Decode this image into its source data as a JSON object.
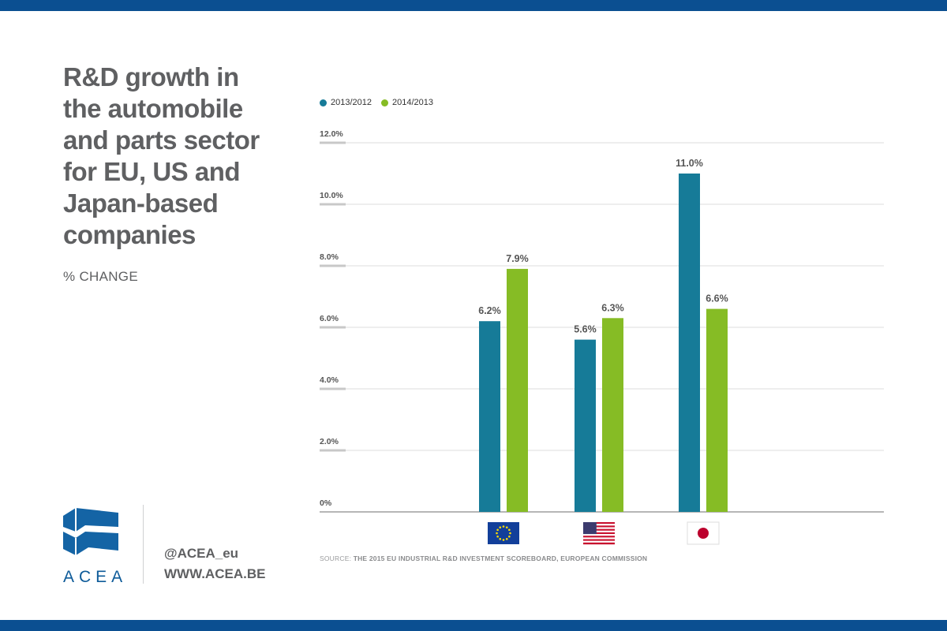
{
  "title": "R&D growth in the automobile and parts sector for EU, US and Japan-based companies",
  "subtitle": "% CHANGE",
  "brand": {
    "logo_text": "ACEA",
    "handle": "@ACEA_eu",
    "website": "WWW.ACEA.BE",
    "color": "#0b4f91"
  },
  "source": {
    "prefix": "SOURCE: ",
    "text": "THE 2015 EU INDUSTRIAL R&D INVESTMENT SCOREBOARD, EUROPEAN COMMISSION"
  },
  "colors": {
    "series_1": "#167b98",
    "series_2": "#86bc25",
    "grid": "#dcdcdc",
    "axis": "#8a8a8a"
  },
  "chart_data": {
    "type": "bar",
    "categories": [
      "EU",
      "US",
      "Japan"
    ],
    "category_icons": [
      "eu-flag-icon",
      "us-flag-icon",
      "japan-flag-icon"
    ],
    "series": [
      {
        "name": "2013/2012",
        "values": [
          6.2,
          5.6,
          11.0
        ],
        "labels": [
          "6.2%",
          "5.6%",
          "11.0%"
        ]
      },
      {
        "name": "2014/2013",
        "values": [
          7.9,
          6.3,
          6.6
        ],
        "labels": [
          "7.9%",
          "6.3%",
          "6.6%"
        ]
      }
    ],
    "ylim": [
      0,
      12
    ],
    "yticks": [
      {
        "value": 12,
        "label": "12.0%"
      },
      {
        "value": 10,
        "label": "10.0%"
      },
      {
        "value": 8,
        "label": "8.0%"
      },
      {
        "value": 6,
        "label": "6.0%"
      },
      {
        "value": 4,
        "label": "4.0%"
      },
      {
        "value": 2,
        "label": "2.0%"
      },
      {
        "value": 0,
        "label": "0%"
      }
    ],
    "grid": true,
    "legend": "top-left"
  }
}
